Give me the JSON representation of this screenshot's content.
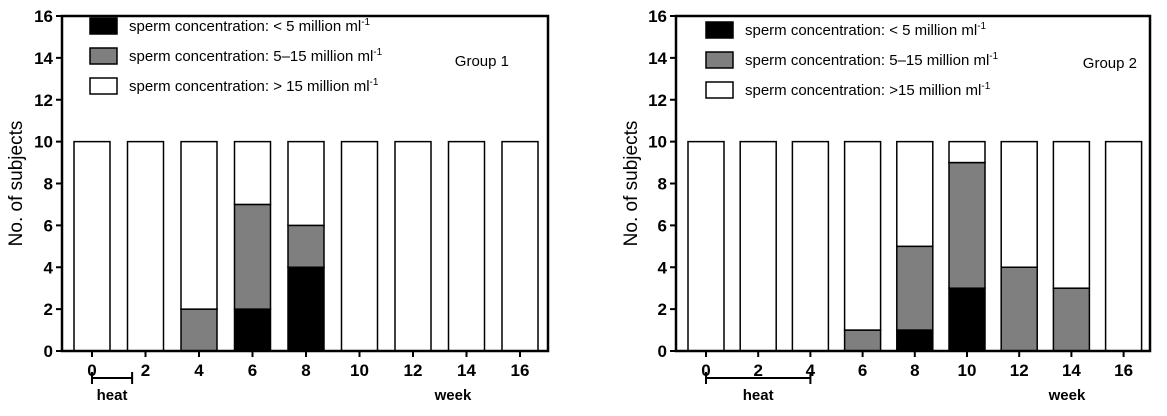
{
  "colors": {
    "below_5": "#000000",
    "5_to_15": "#7f7f7f",
    "above_15": "#ffffff",
    "axis": "#000000"
  },
  "chart_data": [
    {
      "type": "bar",
      "stacked": true,
      "x": [
        0,
        2,
        4,
        6,
        8,
        10,
        12,
        14,
        16
      ],
      "x_ticks": [
        "0",
        "2",
        "4",
        "6",
        "8",
        "10",
        "12",
        "14",
        "16"
      ],
      "xlabel": "week",
      "ylabel": "No. of subjects",
      "ylim": [
        0,
        16
      ],
      "y_ticks": [
        "0",
        "2",
        "4",
        "6",
        "8",
        "10",
        "12",
        "14",
        "16"
      ],
      "grid": false,
      "group_label": "Group 1",
      "heat_label": "heat",
      "heat_range": [
        0,
        1.5
      ],
      "legend_placement": "top-left",
      "series": [
        {
          "name": "sperm concentration: < 5 million ml",
          "superscript": "-1",
          "color_key": "below_5",
          "values": [
            0,
            0,
            0,
            2,
            4,
            0,
            0,
            0,
            0
          ]
        },
        {
          "name": "sperm concentration: 5–15 million ml",
          "superscript": "-1",
          "color_key": "5_to_15",
          "values": [
            0,
            0,
            2,
            5,
            2,
            0,
            0,
            0,
            0
          ]
        },
        {
          "name": "sperm concentration: > 15 million ml",
          "superscript": "-1",
          "color_key": "above_15",
          "values": [
            10,
            10,
            8,
            3,
            4,
            10,
            10,
            10,
            10
          ]
        }
      ]
    },
    {
      "type": "bar",
      "stacked": true,
      "x": [
        0,
        2,
        4,
        6,
        8,
        10,
        12,
        14,
        16
      ],
      "x_ticks": [
        "0",
        "2",
        "4",
        "6",
        "8",
        "10",
        "12",
        "14",
        "16"
      ],
      "xlabel": "week",
      "ylabel": "No. of subjects",
      "ylim": [
        0,
        16
      ],
      "y_ticks": [
        "0",
        "2",
        "4",
        "6",
        "8",
        "10",
        "12",
        "14",
        "16"
      ],
      "grid": false,
      "group_label": "Group 2",
      "heat_label": "heat",
      "heat_range": [
        0,
        4
      ],
      "legend_placement": "top-left",
      "series": [
        {
          "name": "sperm concentration: < 5 million ml",
          "superscript": "-1",
          "color_key": "below_5",
          "values": [
            0,
            0,
            0,
            0,
            1,
            3,
            0,
            0,
            0
          ]
        },
        {
          "name": "sperm concentration: 5–15 million ml",
          "superscript": "-1",
          "color_key": "5_to_15",
          "values": [
            0,
            0,
            0,
            1,
            4,
            6,
            4,
            3,
            0
          ]
        },
        {
          "name": "sperm concentration: >15 million ml",
          "superscript": "-1",
          "color_key": "above_15",
          "values": [
            10,
            10,
            10,
            9,
            5,
            1,
            6,
            7,
            10
          ]
        }
      ]
    }
  ]
}
